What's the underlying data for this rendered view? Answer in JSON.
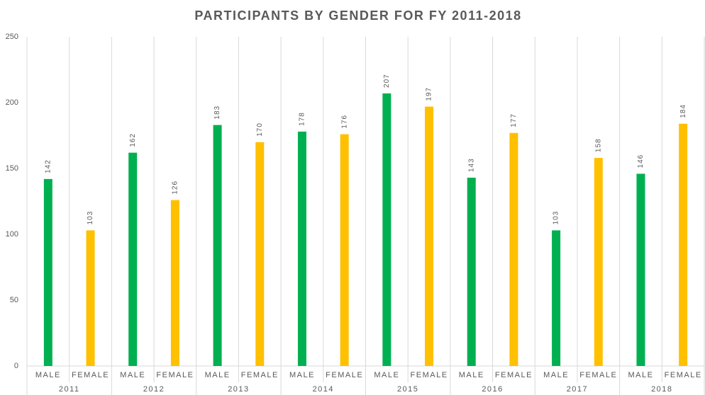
{
  "chart_data": {
    "type": "bar",
    "title": "PARTICIPANTS BY GENDER FOR FY 2011-2018",
    "categories": [
      "2011",
      "2012",
      "2013",
      "2014",
      "2015",
      "2016",
      "2017",
      "2018"
    ],
    "series": [
      {
        "name": "MALE",
        "color": "#00b050",
        "values": [
          142,
          162,
          183,
          178,
          207,
          143,
          103,
          146
        ]
      },
      {
        "name": "FEMALE",
        "color": "#ffc000",
        "values": [
          103,
          126,
          170,
          176,
          197,
          177,
          158,
          184
        ]
      }
    ],
    "ylim": [
      0,
      250
    ],
    "yticks": [
      0,
      50,
      100,
      150,
      200,
      250
    ]
  }
}
